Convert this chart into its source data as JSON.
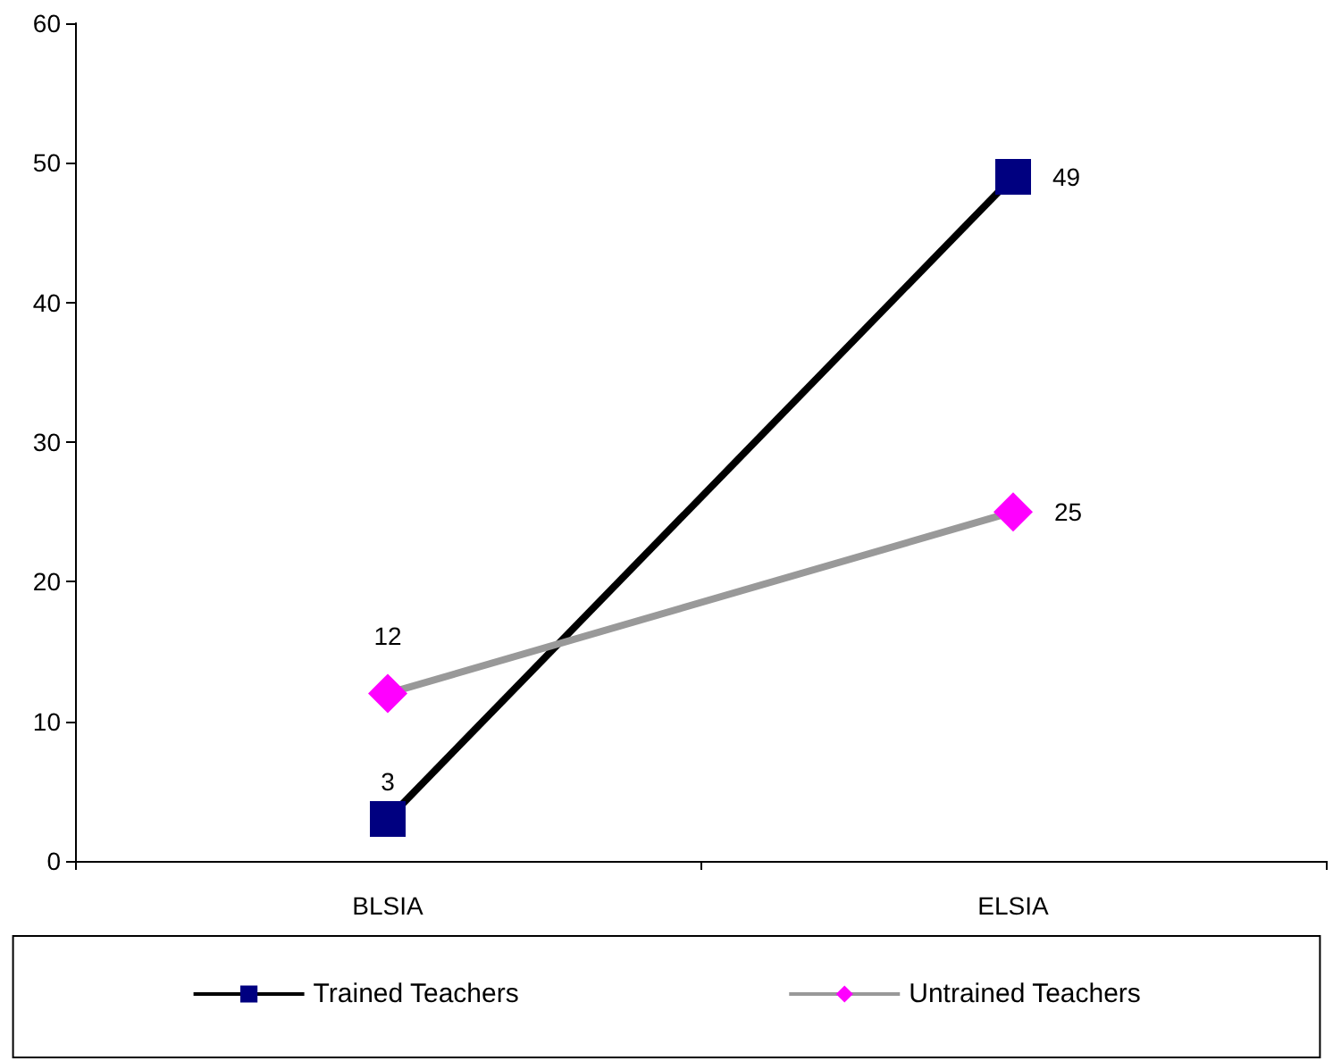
{
  "chart_data": {
    "type": "line",
    "categories": [
      "BLSIA",
      "ELSIA"
    ],
    "series": [
      {
        "name": "Trained Teachers",
        "color": "#000000",
        "colors": [
          "#000080",
          "#000080"
        ],
        "marker": "square",
        "values": [
          3,
          49
        ]
      },
      {
        "name": "Untrained Teachers",
        "color": "#999999",
        "colors": [
          "#ff00ff",
          "#ff00ff"
        ],
        "marker": "diamond",
        "values": [
          12,
          25
        ]
      }
    ],
    "ylim": [
      0,
      60
    ],
    "yticks": [
      0,
      10,
      20,
      30,
      40,
      50,
      60
    ],
    "grid": false,
    "legend": "bottom",
    "data_labels": true
  }
}
